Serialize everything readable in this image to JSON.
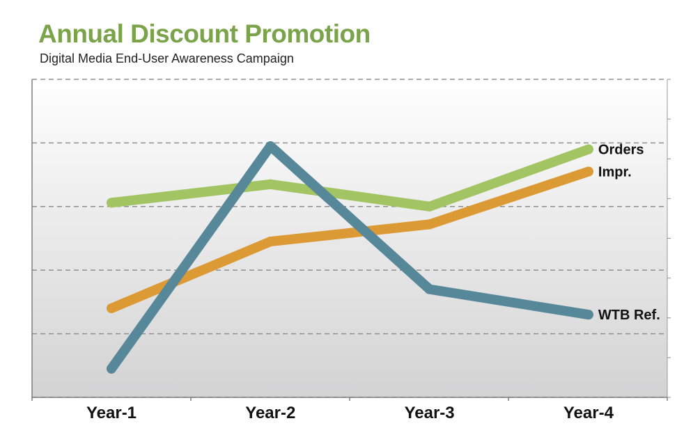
{
  "chart_data": {
    "type": "line",
    "title": "Annual Discount Promotion",
    "subtitle": "Digital Media End-User Awareness Campaign",
    "categories": [
      "Year-1",
      "Year-2",
      "Year-3",
      "Year-4"
    ],
    "ylim": [
      0,
      5
    ],
    "grid": true,
    "series": [
      {
        "name": "Orders",
        "color": "#a3c463",
        "values": [
          3.06,
          3.35,
          3.0,
          3.9
        ]
      },
      {
        "name": "Impr.",
        "color": "#dc9a35",
        "values": [
          1.4,
          2.45,
          2.72,
          3.55
        ]
      },
      {
        "name": "WTB Ref.",
        "color": "#57889a",
        "values": [
          0.45,
          3.95,
          1.7,
          1.3
        ]
      }
    ]
  }
}
